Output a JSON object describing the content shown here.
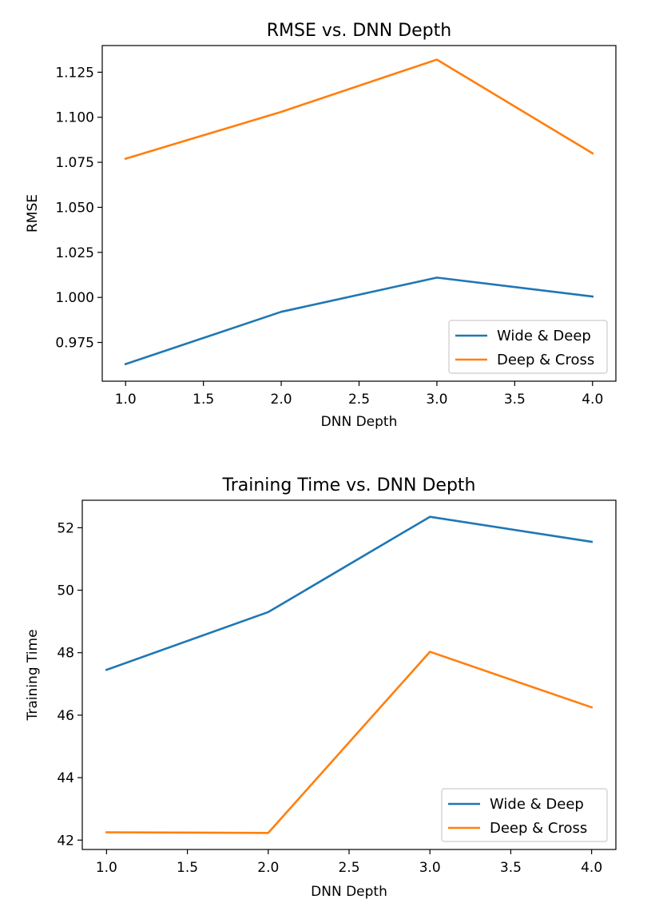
{
  "chart_data": [
    {
      "type": "line",
      "title": "RMSE vs. DNN Depth",
      "xlabel": "DNN Depth",
      "ylabel": "RMSE",
      "x": [
        1.0,
        2.0,
        3.0,
        4.0
      ],
      "xlim": [
        0.85,
        4.15
      ],
      "ylim": [
        0.9535,
        1.1398
      ],
      "xticks": [
        1.0,
        1.5,
        2.0,
        2.5,
        3.0,
        3.5,
        4.0
      ],
      "xtick_labels": [
        "1.0",
        "1.5",
        "2.0",
        "2.5",
        "3.0",
        "3.5",
        "4.0"
      ],
      "yticks": [
        0.975,
        1.0,
        1.025,
        1.05,
        1.075,
        1.1,
        1.125
      ],
      "ytick_labels": [
        "0.975",
        "1.000",
        "1.025",
        "1.050",
        "1.075",
        "1.100",
        "1.125"
      ],
      "grid": false,
      "legend_position": "lower-right",
      "series": [
        {
          "name": "Wide & Deep",
          "color": "#1f77b4",
          "values": [
            0.963,
            0.992,
            1.011,
            1.0005
          ]
        },
        {
          "name": "Deep & Cross",
          "color": "#ff7f0e",
          "values": [
            1.077,
            1.103,
            1.132,
            1.08
          ]
        }
      ]
    },
    {
      "type": "line",
      "title": "Training Time vs. DNN Depth",
      "xlabel": "DNN Depth",
      "ylabel": "Training Time",
      "x": [
        1.0,
        2.0,
        3.0,
        4.0
      ],
      "xlim": [
        0.85,
        4.15
      ],
      "ylim": [
        41.7,
        52.88
      ],
      "xticks": [
        1.0,
        1.5,
        2.0,
        2.5,
        3.0,
        3.5,
        4.0
      ],
      "xtick_labels": [
        "1.0",
        "1.5",
        "2.0",
        "2.5",
        "3.0",
        "3.5",
        "4.0"
      ],
      "yticks": [
        42,
        44,
        46,
        48,
        50,
        52
      ],
      "ytick_labels": [
        "42",
        "44",
        "46",
        "48",
        "50",
        "52"
      ],
      "grid": false,
      "legend_position": "lower-right",
      "series": [
        {
          "name": "Wide & Deep",
          "color": "#1f77b4",
          "values": [
            47.45,
            49.3,
            52.35,
            51.55
          ]
        },
        {
          "name": "Deep & Cross",
          "color": "#ff7f0e",
          "values": [
            42.25,
            42.23,
            48.03,
            46.25
          ]
        }
      ]
    }
  ]
}
